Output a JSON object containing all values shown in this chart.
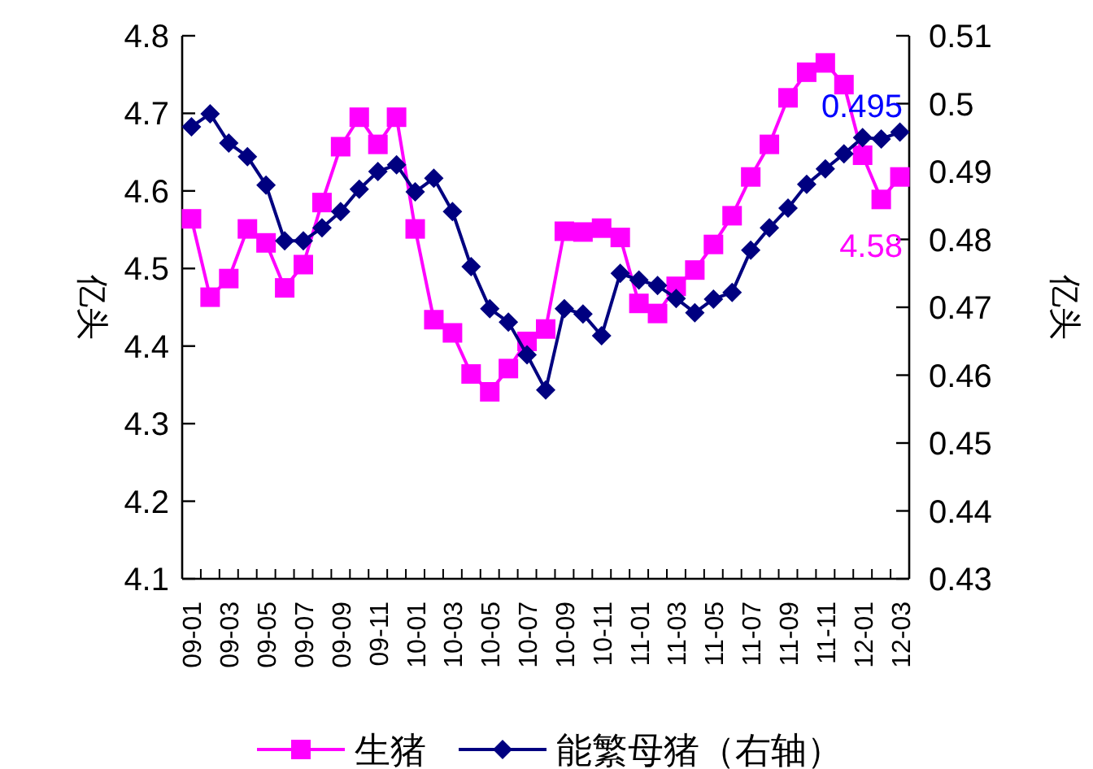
{
  "chart_data": {
    "type": "line",
    "categories": [
      "09-01",
      null,
      "09-03",
      null,
      "09-05",
      null,
      "09-07",
      null,
      "09-09",
      null,
      "09-11",
      null,
      "10-01",
      null,
      "10-03",
      null,
      "10-05",
      null,
      "10-07",
      null,
      "10-09",
      null,
      "10-11",
      null,
      "11-01",
      null,
      "11-03",
      null,
      "11-05",
      null,
      "11-07",
      null,
      "11-09",
      null,
      "11-11",
      null,
      "12-01",
      null,
      "12-03"
    ],
    "series": [
      {
        "name": "生猪",
        "color": "#ff00ff",
        "marker": "square",
        "values": [
          4.564,
          4.463,
          4.487,
          4.551,
          4.533,
          4.475,
          4.505,
          4.585,
          4.657,
          4.695,
          4.66,
          4.695,
          4.551,
          4.434,
          4.417,
          4.364,
          4.341,
          4.371,
          4.406,
          4.422,
          4.548,
          4.547,
          4.552,
          4.54,
          4.455,
          4.442,
          4.477,
          4.498,
          4.531,
          4.568,
          4.618,
          4.66,
          4.72,
          4.753,
          4.765,
          4.737,
          4.646,
          4.589,
          4.618
        ]
      },
      {
        "name": "能繁母猪（右轴）",
        "color": "#000080",
        "marker": "diamond",
        "axis": "y2",
        "values": [
          0.4966,
          0.4985,
          0.4942,
          0.4922,
          0.488,
          0.4798,
          0.4798,
          0.4817,
          0.4841,
          0.4874,
          0.49,
          0.491,
          0.487,
          0.489,
          0.4841,
          0.476,
          0.4698,
          0.4678,
          0.463,
          0.4578,
          0.4698,
          0.469,
          0.4658,
          0.475,
          0.474,
          0.4732,
          0.4713,
          0.4692,
          0.4712,
          0.4722,
          0.4784,
          0.4817,
          0.4846,
          0.4881,
          0.4904,
          0.4926,
          0.495,
          0.4948,
          0.4958
        ]
      }
    ],
    "ylabel": "亿头",
    "y2label": "亿头",
    "ylim": [
      4.1,
      4.8
    ],
    "yticks": [
      4.1,
      4.2,
      4.3,
      4.4,
      4.5,
      4.6,
      4.7,
      4.8
    ],
    "y2lim": [
      0.43,
      0.51
    ],
    "y2ticks": [
      0.43,
      0.44,
      0.45,
      0.46,
      0.47,
      0.48,
      0.49,
      0.5,
      0.51
    ],
    "annotations": [
      "0.495",
      "4.58"
    ],
    "legend": "bottom"
  }
}
